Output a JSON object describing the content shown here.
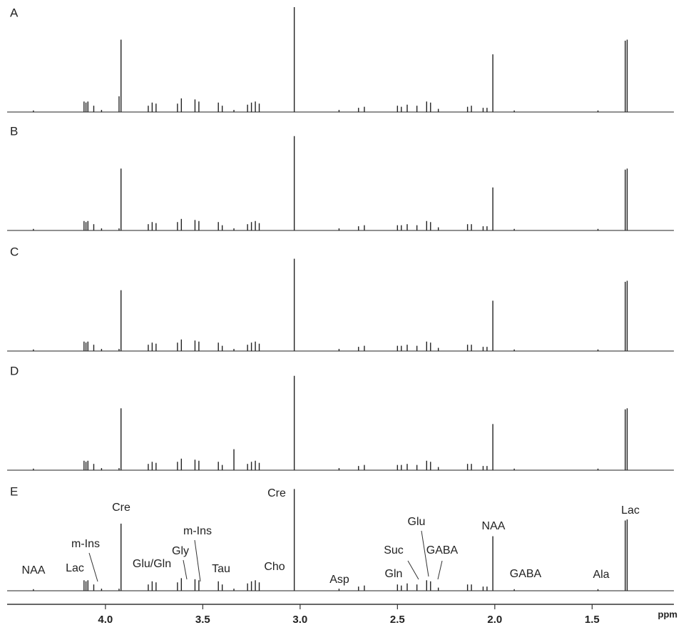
{
  "chart_data": {
    "type": "spectrum",
    "x": [
      4.37,
      4.11,
      4.1,
      4.09,
      4.06,
      4.02,
      3.93,
      3.92,
      3.78,
      3.76,
      3.74,
      3.63,
      3.61,
      3.54,
      3.52,
      3.42,
      3.4,
      3.34,
      3.27,
      3.25,
      3.23,
      3.21,
      3.03,
      2.8,
      2.7,
      2.67,
      2.5,
      2.48,
      2.45,
      2.4,
      2.35,
      2.33,
      2.29,
      2.14,
      2.12,
      2.06,
      2.04,
      2.01,
      1.9,
      1.47,
      1.33,
      1.32
    ],
    "series": [
      {
        "name": "A",
        "color": "#222222",
        "values": [
          1.5,
          10,
          9,
          10,
          6,
          2,
          15,
          69,
          6,
          9,
          8,
          8,
          13,
          12,
          10,
          9,
          6,
          2,
          7,
          9,
          10,
          8,
          100,
          2,
          4,
          5,
          6,
          5,
          7,
          6,
          10,
          9,
          3,
          5,
          6,
          4,
          4,
          55,
          1.5,
          1.5,
          68,
          69
        ]
      },
      {
        "name": "B",
        "color": "#222222",
        "values": [
          1.5,
          9,
          8,
          9,
          6,
          2,
          2,
          59,
          6,
          8,
          7,
          8,
          11,
          10,
          9,
          8,
          5,
          2,
          6,
          8,
          9,
          7,
          90,
          2,
          4,
          5,
          5,
          5,
          6,
          5,
          9,
          8,
          3,
          6,
          6,
          4,
          4,
          41,
          1.5,
          1.5,
          58,
          59
        ]
      },
      {
        "name": "C",
        "color": "#222222",
        "values": [
          1.5,
          9,
          8,
          9,
          6,
          2,
          2,
          58,
          6,
          8,
          7,
          8,
          11,
          10,
          9,
          8,
          5,
          2,
          6,
          8,
          9,
          7,
          88,
          2,
          4,
          5,
          5,
          5,
          6,
          5,
          9,
          8,
          3,
          6,
          6,
          4,
          4,
          48,
          1.5,
          1.5,
          66,
          67
        ]
      },
      {
        "name": "D",
        "color": "#222222",
        "values": [
          1.5,
          9,
          8,
          9,
          6,
          2,
          2,
          59,
          6,
          8,
          7,
          8,
          11,
          10,
          9,
          8,
          5,
          20,
          6,
          8,
          9,
          7,
          90,
          2,
          4,
          5,
          5,
          5,
          6,
          5,
          9,
          8,
          3,
          6,
          6,
          4,
          4,
          44,
          1.5,
          1.5,
          58,
          59
        ]
      },
      {
        "name": "E",
        "color": "#222222",
        "values": [
          1.5,
          10,
          9,
          10,
          6,
          2,
          2,
          64,
          6,
          9,
          8,
          8,
          12,
          11,
          10,
          9,
          6,
          2,
          7,
          9,
          10,
          8,
          97,
          2,
          4,
          5,
          6,
          5,
          7,
          6,
          10,
          9,
          3,
          6,
          6,
          4,
          4,
          52,
          1.5,
          1.5,
          67,
          68
        ]
      }
    ],
    "annotations": [
      "NAA",
      "Lac",
      "m-Ins",
      "Cre",
      "Glu/Gln",
      "Gly",
      "m-Ins",
      "Tau",
      "Cho",
      "Cre",
      "Asp",
      "Gln",
      "Suc",
      "Glu",
      "GABA",
      "NAA",
      "GABA",
      "Ala",
      "Lac"
    ],
    "xlim": [
      4.505,
      1.08
    ],
    "xticks": [
      {
        "value": 4,
        "label": "4.0"
      },
      3.5,
      {
        "value": 3,
        "label": "3.0"
      },
      2.5,
      {
        "value": 2,
        "label": "2.0"
      },
      1.5
    ],
    "xlabel": "ppm"
  }
}
